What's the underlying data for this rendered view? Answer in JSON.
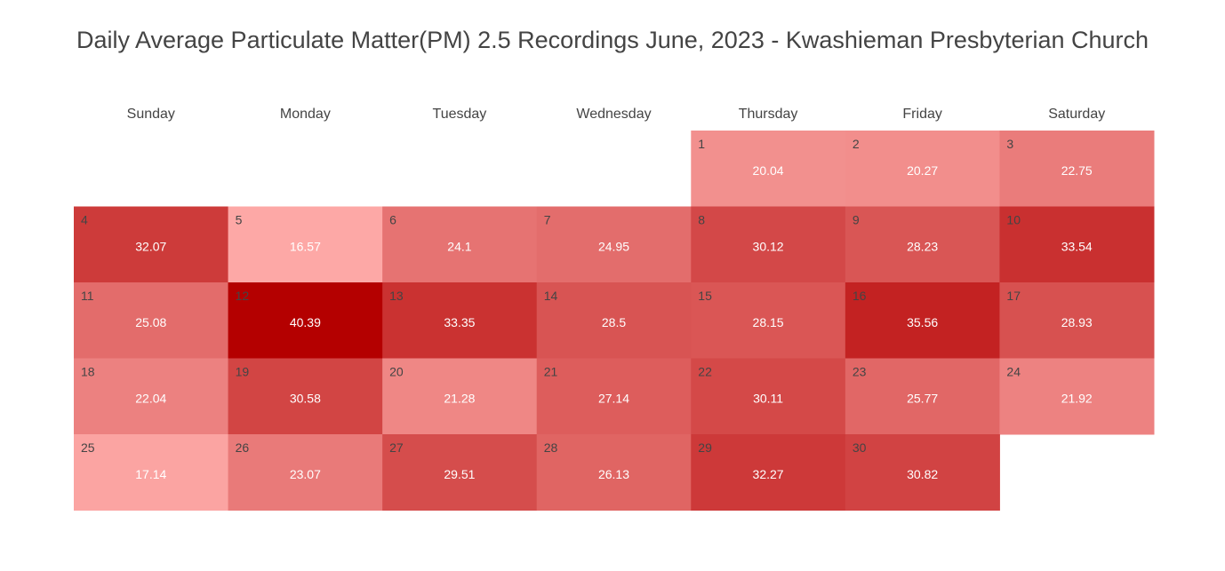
{
  "chart_data": {
    "type": "heatmap",
    "title": "Daily Average Particulate Matter(PM) 2.5 Recordings June, 2023 - Kwashieman Presbyterian Church",
    "weekdays": [
      "Sunday",
      "Monday",
      "Tuesday",
      "Wednesday",
      "Thursday",
      "Friday",
      "Saturday"
    ],
    "first_weekday_index": 4,
    "days": [
      1,
      2,
      3,
      4,
      5,
      6,
      7,
      8,
      9,
      10,
      11,
      12,
      13,
      14,
      15,
      16,
      17,
      18,
      19,
      20,
      21,
      22,
      23,
      24,
      25,
      26,
      27,
      28,
      29,
      30
    ],
    "values": [
      20.04,
      20.27,
      22.75,
      32.07,
      16.57,
      24.1,
      24.95,
      30.12,
      28.23,
      33.54,
      25.08,
      40.39,
      33.35,
      28.5,
      28.15,
      35.56,
      28.93,
      22.04,
      30.58,
      21.28,
      27.14,
      30.11,
      25.77,
      21.92,
      17.14,
      23.07,
      29.51,
      26.13,
      32.27,
      30.82
    ],
    "color_scale": {
      "low": "#fda8a6",
      "high": "#b40000"
    }
  }
}
